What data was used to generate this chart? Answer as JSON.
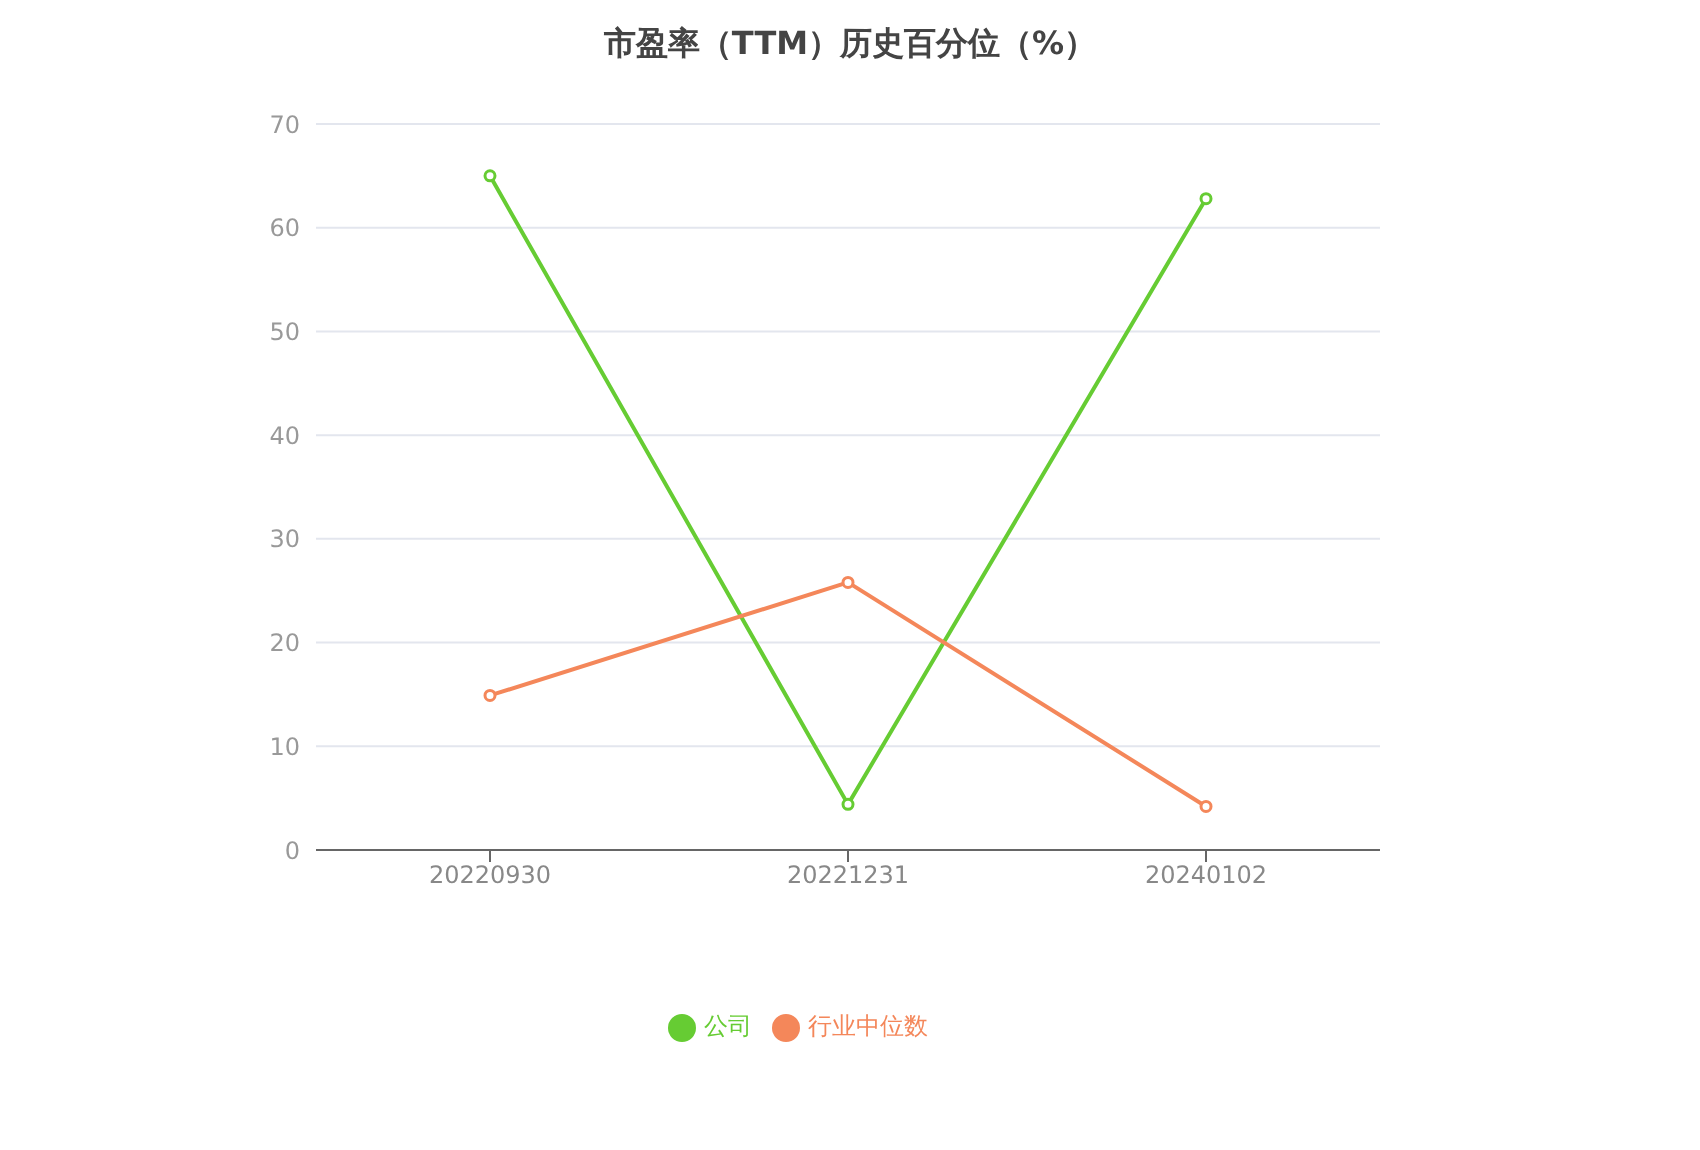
{
  "chart_data": {
    "type": "line",
    "title": "市盈率（TTM）历史百分位（%）",
    "categories": [
      "20220930",
      "20221231",
      "20240102"
    ],
    "series": [
      {
        "name": "公司",
        "color": "#66cc33",
        "values": [
          65,
          4.4,
          62.8
        ]
      },
      {
        "name": "行业中位数",
        "color": "#f4875a",
        "values": [
          14.9,
          25.8,
          4.2
        ]
      }
    ],
    "ylim": [
      0,
      70
    ],
    "yticks": [
      0,
      10,
      20,
      30,
      40,
      50,
      60,
      70
    ],
    "grid": "y",
    "legend": "bottom",
    "marker": "circle"
  }
}
